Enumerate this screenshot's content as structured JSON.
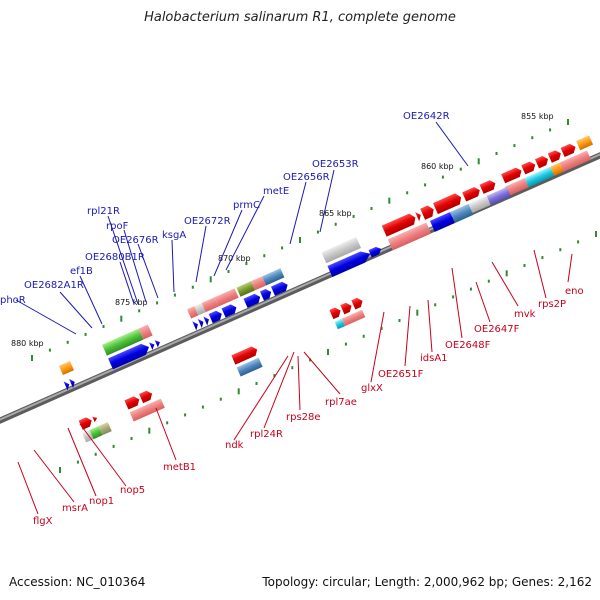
{
  "title": "Halobacterium salinarum R1, complete genome",
  "footer": {
    "accession": "Accession: NC_010364",
    "summary": "Topology: circular; Length: 2,000,962 bp; Genes: 2,162"
  },
  "colors": {
    "forward_label": "#c8001a",
    "reverse_label": "#1a1ab5",
    "backbone": "#808080",
    "tick_marks": "#2e8b2e"
  },
  "position_ticks": [
    "855 kbp",
    "860 kbp",
    "865 kbp",
    "870 kbp",
    "875 kbp",
    "880 kbp"
  ],
  "forward_genes": [
    "eno",
    "rps2P",
    "mvk",
    "OE2647F",
    "OE2648F",
    "idsA1",
    "OE2651F",
    "glxX",
    "rpl7ae",
    "rps28e",
    "rpl24R",
    "ndk",
    "metB1",
    "nop5",
    "nop1",
    "msrA",
    "flgX"
  ],
  "reverse_genes": [
    "OE2642R",
    "OE2653R",
    "OE2656R",
    "metE",
    "prmC",
    "OE2672R",
    "ksgA",
    "OE2676R",
    "rpoF",
    "rpl21R",
    "OE2680B1R",
    "ef1B",
    "OE2682A1R",
    "phoR"
  ]
}
